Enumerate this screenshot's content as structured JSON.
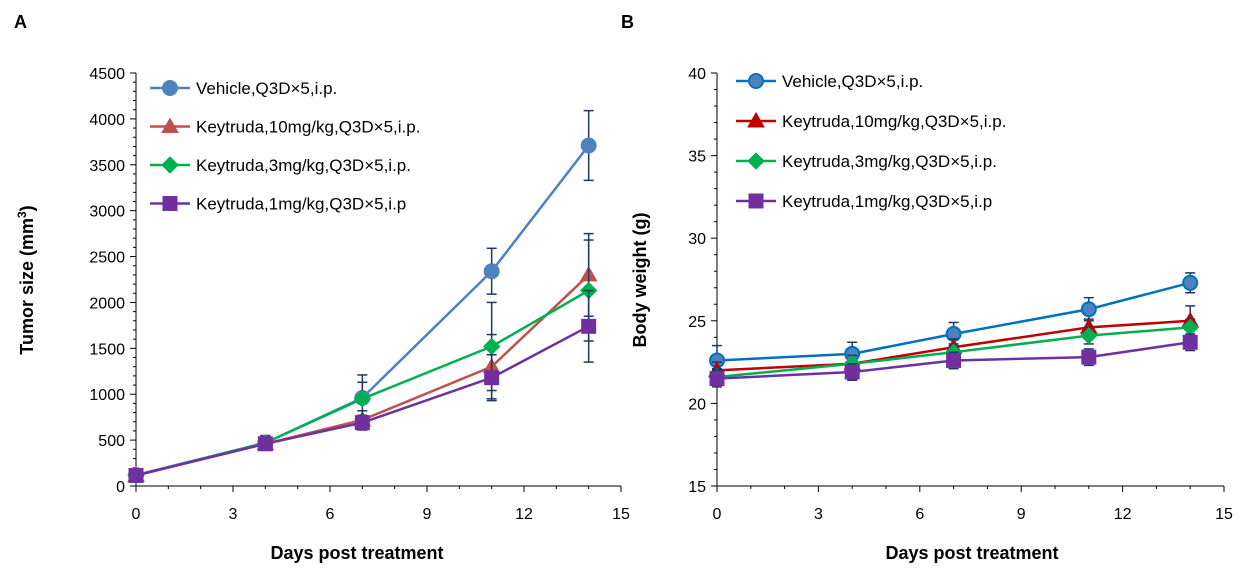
{
  "chart_data": [
    {
      "panel_label": "A",
      "type": "line",
      "xlabel": "Days post treatment",
      "ylabel_main": "Tumor size (mm",
      "ylabel_sup": "3",
      "ylabel_end": ")",
      "xlim": [
        0,
        15
      ],
      "ylim": [
        0,
        4500
      ],
      "xticks": [
        0,
        3,
        6,
        9,
        12,
        15
      ],
      "yticks": [
        0,
        500,
        1000,
        1500,
        2000,
        2500,
        3000,
        3500,
        4000,
        4500
      ],
      "x": [
        0,
        4,
        7,
        11,
        14
      ],
      "legend_position": "top-left",
      "grid": false,
      "series": [
        {
          "name": "Vehicle,Q3D×5,i.p.",
          "color": "#4f81bd",
          "marker": "circle",
          "values": [
            120,
            470,
            960,
            2340,
            3710
          ],
          "errors": [
            30,
            80,
            250,
            250,
            380
          ]
        },
        {
          "name": "Keytruda,10mg/kg,Q3D×5,i.p.",
          "color": "#c0504d",
          "marker": "triangle",
          "values": [
            115,
            460,
            720,
            1300,
            2300
          ],
          "errors": [
            25,
            60,
            100,
            350,
            450
          ]
        },
        {
          "name": "Keytruda,3mg/kg,Q3D×5,i.p.",
          "color": "#00b050",
          "marker": "diamond",
          "values": [
            115,
            470,
            950,
            1520,
            2130
          ],
          "errors": [
            25,
            70,
            180,
            480,
            550
          ]
        },
        {
          "name": "Keytruda,1mg/kg,Q3D×5,i.p",
          "color": "#7030a0",
          "marker": "square",
          "values": [
            115,
            460,
            690,
            1180,
            1740
          ],
          "errors": [
            25,
            60,
            80,
            250,
            390
          ]
        }
      ]
    },
    {
      "panel_label": "B",
      "type": "line",
      "xlabel": "Days post treatment",
      "ylabel": "Body weight (g)",
      "xlim": [
        0,
        15
      ],
      "ylim": [
        15,
        40
      ],
      "xticks": [
        0,
        3,
        6,
        9,
        12,
        15
      ],
      "yticks": [
        15,
        20,
        25,
        30,
        35,
        40
      ],
      "x": [
        0,
        4,
        7,
        11,
        14
      ],
      "legend_position": "top-left",
      "grid": false,
      "series": [
        {
          "name": "Vehicle,Q3D×5,i.p.",
          "color": "#0070c0",
          "marker": "circle",
          "marker_fill": "#4f81bd",
          "values": [
            22.6,
            23.0,
            24.2,
            25.7,
            27.3
          ],
          "errors": [
            0.9,
            0.7,
            0.7,
            0.7,
            0.6
          ]
        },
        {
          "name": "Keytruda,10mg/kg,Q3D×5,i.p.",
          "color": "#c00000",
          "marker": "triangle",
          "marker_fill": "#c00000",
          "values": [
            22.0,
            22.4,
            23.4,
            24.6,
            25.0
          ],
          "errors": [
            0.5,
            0.5,
            0.5,
            0.5,
            0.9
          ]
        },
        {
          "name": "Keytruda,3mg/kg,Q3D×5,i.p.",
          "color": "#00b050",
          "marker": "diamond",
          "marker_fill": "#00b050",
          "values": [
            21.6,
            22.4,
            23.1,
            24.1,
            24.6
          ],
          "errors": [
            0.5,
            0.5,
            0.5,
            0.5,
            0.5
          ]
        },
        {
          "name": "Keytruda,1mg/kg,Q3D×5,i.p",
          "color": "#7030a0",
          "marker": "square",
          "marker_fill": "#7030a0",
          "values": [
            21.5,
            21.9,
            22.6,
            22.8,
            23.7
          ],
          "errors": [
            0.5,
            0.5,
            0.5,
            0.5,
            0.5
          ]
        }
      ]
    }
  ]
}
